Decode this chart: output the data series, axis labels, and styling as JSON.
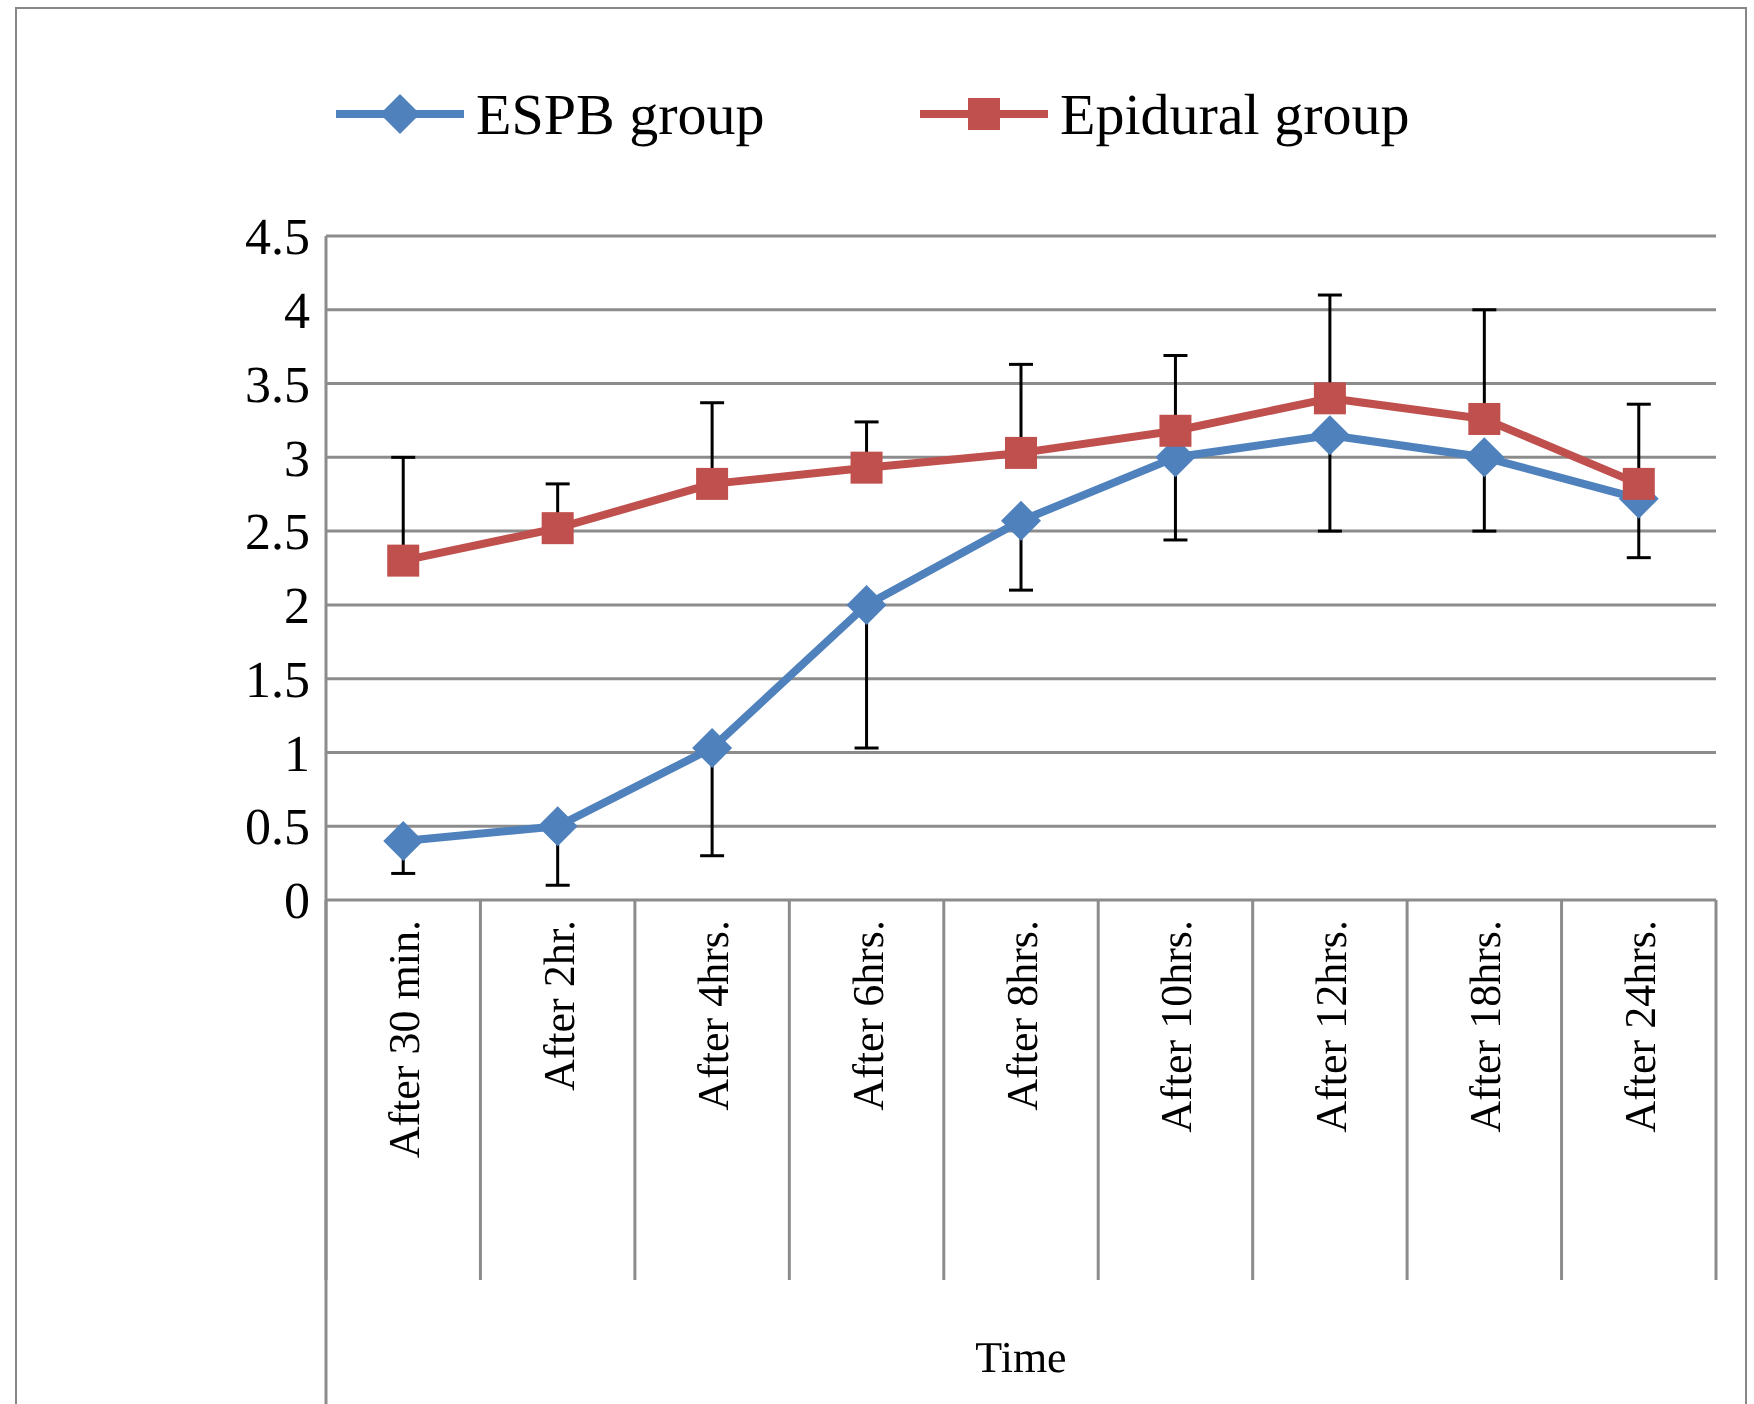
{
  "chart_data": {
    "type": "line",
    "xlabel": "Time",
    "categories": [
      "After 30 min.",
      "After 2hr.",
      "After 4hrs.",
      "After 6hrs.",
      "After 8hrs.",
      "After 10hrs.",
      "After 12hrs.",
      "After 18hrs.",
      "After 24hrs."
    ],
    "series": [
      {
        "name": "ESPB group",
        "color": "#4f81bd",
        "marker": "diamond",
        "values": [
          0.4,
          0.5,
          1.03,
          2.0,
          2.57,
          3.0,
          3.15,
          3.0,
          2.72
        ],
        "errors": [
          [
            0.18,
            0.4
          ],
          [
            0.1,
            0.5
          ],
          [
            0.3,
            1.03
          ],
          [
            1.03,
            2.0
          ],
          [
            2.1,
            2.57
          ],
          [
            2.44,
            3.0
          ],
          [
            2.5,
            3.15
          ],
          [
            2.5,
            3.0
          ],
          [
            2.32,
            2.72
          ]
        ]
      },
      {
        "name": "Epidural group",
        "color": "#c0504d",
        "marker": "square",
        "values": [
          2.3,
          2.52,
          2.82,
          2.93,
          3.03,
          3.18,
          3.4,
          3.26,
          2.82
        ],
        "errors": [
          [
            2.3,
            3.0
          ],
          [
            2.52,
            2.82
          ],
          [
            2.82,
            3.37
          ],
          [
            2.93,
            3.24
          ],
          [
            3.03,
            3.63
          ],
          [
            3.18,
            3.69
          ],
          [
            3.4,
            4.1
          ],
          [
            3.26,
            4.0
          ],
          [
            2.82,
            3.36
          ]
        ]
      }
    ],
    "ylim": [
      0,
      4.5
    ],
    "yticks": [
      0,
      0.5,
      1,
      1.5,
      2,
      2.5,
      3,
      3.5,
      4,
      4.5
    ],
    "grid": "y",
    "legend": "top",
    "line_style": "solid"
  }
}
